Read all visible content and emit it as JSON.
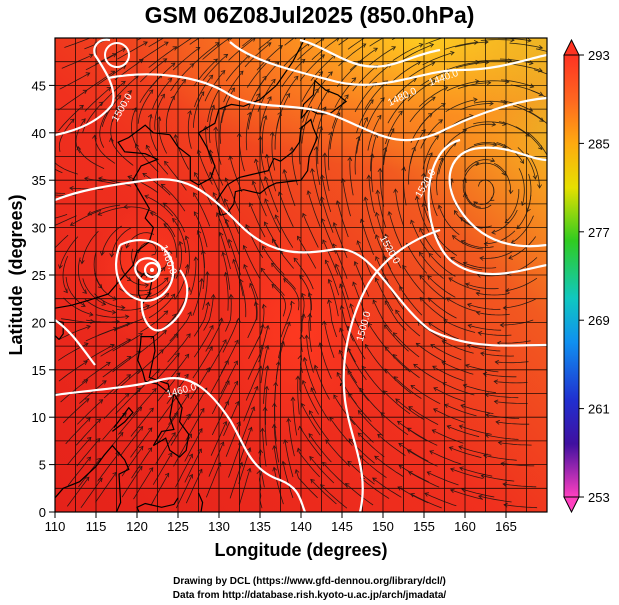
{
  "title": "GSM 06Z08Jul2025 (850.0hPa)",
  "xlabel": "Longitude (degrees)",
  "ylabel": "Latitude  (degrees)",
  "x_ticks": [
    110,
    115,
    120,
    125,
    130,
    135,
    140,
    145,
    150,
    155,
    160,
    165
  ],
  "y_ticks": [
    0,
    5,
    10,
    15,
    20,
    25,
    30,
    35,
    40,
    45
  ],
  "xlim": [
    110,
    170
  ],
  "ylim": [
    0,
    50
  ],
  "colorbar": {
    "min": 253,
    "max": 293,
    "ticks": [
      293,
      285,
      277,
      269,
      261,
      253
    ]
  },
  "contour_labels": [
    {
      "text": "1440.0",
      "lon": 157.5,
      "lat": 45.5,
      "angle": -20
    },
    {
      "text": "1480.0",
      "lon": 152.5,
      "lat": 43.5,
      "angle": -25
    },
    {
      "text": "1500.0",
      "lon": 118.5,
      "lat": 42.5,
      "angle": -60
    },
    {
      "text": "1520.0",
      "lon": 155.5,
      "lat": 34.5,
      "angle": -60
    },
    {
      "text": "1520.0",
      "lon": 150.5,
      "lat": 27.5,
      "angle": 60
    },
    {
      "text": "1460.0",
      "lon": 123.5,
      "lat": 26.5,
      "angle": 70
    },
    {
      "text": "1500.0",
      "lon": 148.0,
      "lat": 19.5,
      "angle": -75
    },
    {
      "text": "1460.0",
      "lon": 125.5,
      "lat": 12.5,
      "angle": -15
    }
  ],
  "credit_line_1": "Drawing by DCL (https://www.gfd-dennou.org/library/dcl/)",
  "credit_line_2": "Data from http://database.rish.kyoto-u.ac.jp/arch/jmadata/"
}
